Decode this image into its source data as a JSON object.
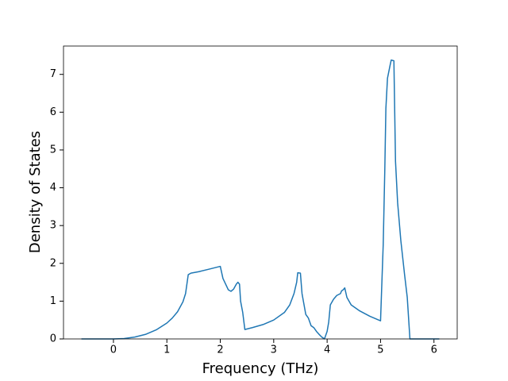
{
  "chart_data": {
    "type": "line",
    "x_label": "Frequency (THz)",
    "y_label": "Density of States",
    "x": [
      -0.6,
      0,
      0.2,
      0.4,
      0.6,
      0.8,
      1.0,
      1.1,
      1.2,
      1.3,
      1.35,
      1.4,
      1.45,
      1.6,
      1.8,
      2.0,
      2.05,
      2.1,
      2.15,
      2.2,
      2.25,
      2.3,
      2.33,
      2.36,
      2.38,
      2.42,
      2.46,
      2.6,
      2.8,
      3.0,
      3.2,
      3.3,
      3.38,
      3.43,
      3.45,
      3.5,
      3.53,
      3.6,
      3.65,
      3.7,
      3.75,
      3.8,
      3.85,
      3.9,
      3.95,
      4.0,
      4.03,
      4.06,
      4.12,
      4.18,
      4.25,
      4.27,
      4.3,
      4.33,
      4.37,
      4.45,
      4.6,
      4.8,
      5.0,
      5.05,
      5.08,
      5.1,
      5.13,
      5.18,
      5.2,
      5.25,
      5.28,
      5.32,
      5.38,
      5.45,
      5.5,
      5.55,
      6.1
    ],
    "series": [
      {
        "color": "#1f77b4",
        "values": [
          0,
          0,
          0.01,
          0.05,
          0.12,
          0.24,
          0.42,
          0.55,
          0.72,
          0.98,
          1.2,
          1.7,
          1.74,
          1.78,
          1.85,
          1.92,
          1.6,
          1.45,
          1.3,
          1.26,
          1.32,
          1.45,
          1.5,
          1.45,
          1.0,
          0.7,
          0.25,
          0.3,
          0.38,
          0.5,
          0.7,
          0.9,
          1.2,
          1.5,
          1.75,
          1.74,
          1.2,
          0.65,
          0.55,
          0.35,
          0.3,
          0.2,
          0.12,
          0.05,
          0.0,
          0.2,
          0.45,
          0.9,
          1.05,
          1.15,
          1.2,
          1.27,
          1.3,
          1.35,
          1.1,
          0.9,
          0.75,
          0.6,
          0.48,
          2.5,
          4.5,
          6.1,
          6.9,
          7.25,
          7.38,
          7.36,
          4.7,
          3.6,
          2.6,
          1.7,
          1.1,
          0.0,
          0
        ]
      }
    ],
    "xlim": [
      -0.935,
      6.435
    ],
    "ylim": [
      0,
      7.75
    ],
    "xticks": [
      0,
      1,
      2,
      3,
      4,
      5,
      6
    ],
    "yticks": [
      0,
      1,
      2,
      3,
      4,
      5,
      6,
      7
    ]
  }
}
